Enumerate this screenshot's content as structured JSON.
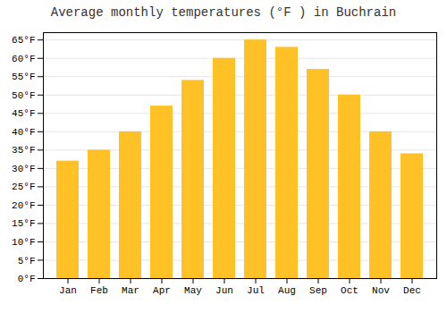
{
  "chart_data": {
    "type": "bar",
    "title": "Average monthly temperatures (°F ) in Buchrain",
    "categories": [
      "Jan",
      "Feb",
      "Mar",
      "Apr",
      "May",
      "Jun",
      "Jul",
      "Aug",
      "Sep",
      "Oct",
      "Nov",
      "Dec"
    ],
    "values": [
      32,
      35,
      40,
      47,
      54,
      60,
      65,
      63,
      57,
      50,
      40,
      34
    ],
    "color": "#FFC125",
    "ylim": [
      0,
      67
    ],
    "yticks": [
      {
        "value": 0,
        "label": "0°F"
      },
      {
        "value": 5,
        "label": "5°F"
      },
      {
        "value": 10,
        "label": "10°F"
      },
      {
        "value": 15,
        "label": "15°F"
      },
      {
        "value": 20,
        "label": "20°F"
      },
      {
        "value": 25,
        "label": "25°F"
      },
      {
        "value": 30,
        "label": "30°F"
      },
      {
        "value": 35,
        "label": "35°F"
      },
      {
        "value": 40,
        "label": "40°F"
      },
      {
        "value": 45,
        "label": "45°F"
      },
      {
        "value": 50,
        "label": "50°F"
      },
      {
        "value": 55,
        "label": "55°F"
      },
      {
        "value": 60,
        "label": "60°F"
      },
      {
        "value": 65,
        "label": "65°F"
      }
    ],
    "grid": true
  }
}
